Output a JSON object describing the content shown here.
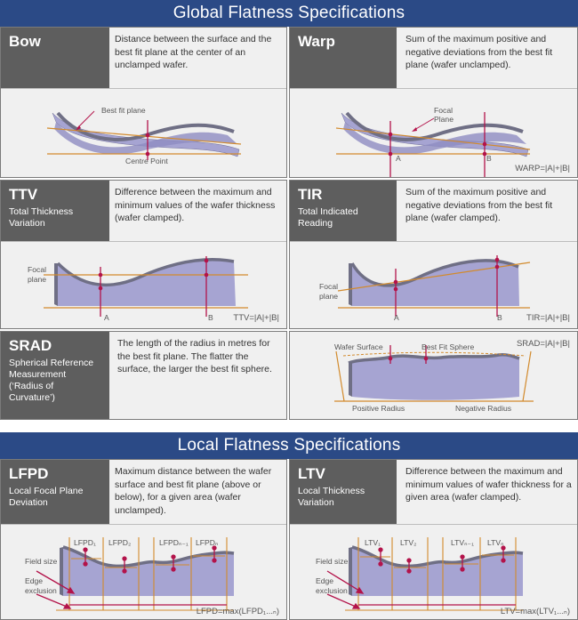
{
  "global": {
    "title": "Global Flatness Specifications",
    "bow": {
      "name": "Bow",
      "desc": "Distance between the surface and the best fit plane at the center of an unclamped wafer.",
      "labels": {
        "best_fit": "Best fit plane",
        "centre": "Centre Point"
      }
    },
    "warp": {
      "name": "Warp",
      "desc": "Sum of the maximum positive and negative deviations from the best fit plane (wafer unclamped).",
      "labels": {
        "focal1": "Focal",
        "focal2": "Plane",
        "a": "A",
        "b": "B"
      },
      "formula": "WARP=|A|+|B|"
    },
    "ttv": {
      "name": "TTV",
      "sub": "Total Thickness Variation",
      "desc": "Difference between the maximum and minimum values of the wafer thickness (wafer clamped).",
      "labels": {
        "focal1": "Focal",
        "focal2": "plane",
        "a": "A",
        "b": "B"
      },
      "formula": "TTV=|A|+|B|"
    },
    "tir": {
      "name": "TIR",
      "sub": "Total Indicated Reading",
      "desc": "Sum of the maximum positive and negative deviations from the best fit plane (wafer clamped).",
      "labels": {
        "focal1": "Focal",
        "focal2": "plane",
        "a": "A",
        "b": "B"
      },
      "formula": "TIR=|A|+|B|"
    },
    "srad": {
      "name": "SRAD",
      "sub": "Spherical Reference Measurement (‘Radius of Curvature’)",
      "desc": "The length of the radius in metres for the best fit plane. The flatter the surface, the larger the best fit sphere.",
      "labels": {
        "wafer_surface": "Wafer Surface",
        "best_fit_sphere": "Best Fit Sphere",
        "positive_radius": "Positive Radius",
        "negative_radius": "Negative Radius"
      },
      "formula": "SRAD=|A|+|B|"
    }
  },
  "local": {
    "title": "Local Flatness Specifications",
    "lfpd": {
      "name": "LFPD",
      "sub": "Local Focal Plane Deviation",
      "desc": "Maximum distance between the wafer surface and best fit plane (above or below), for a given area (wafer unclamped).",
      "labels": {
        "field_size": "Field size",
        "edge1": "Edge",
        "edge2": "exclusion",
        "l1": "LFPD₁",
        "l2": "LFPD₂",
        "l3": "LFPDₙ₋₁",
        "l4": "LFPDₙ"
      },
      "formula": "LFPD=max(LFPD₁...ₙ)"
    },
    "ltv": {
      "name": "LTV",
      "sub": "Local Thickness Variation",
      "desc": "Difference between the maximum and minimum values of wafer thickness for a given area (wafer clamped).",
      "labels": {
        "field_size": "Field size",
        "edge1": "Edge",
        "edge2": "exclusion",
        "l1": "LTV₁",
        "l2": "LTV₂",
        "l3": "LTVₙ₋₁",
        "l4": "LTVₙ"
      },
      "formula": "LTV=max(LTV₁...ₙ)"
    }
  }
}
